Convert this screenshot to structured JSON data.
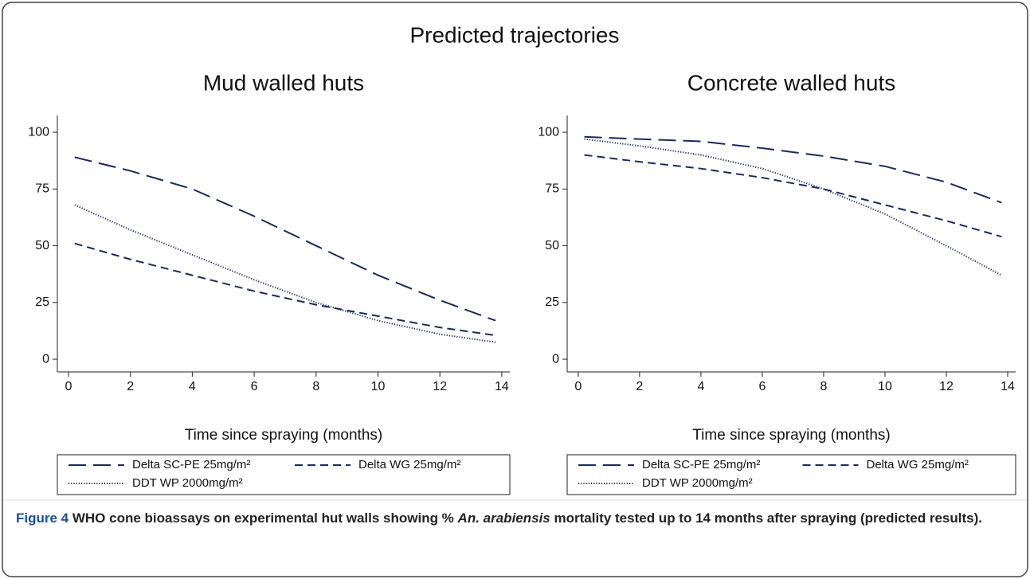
{
  "title": "Predicted trajectories",
  "chart_data": [
    {
      "type": "line",
      "title": "Mud walled huts",
      "x_label": "Time since spraying (months)",
      "x": [
        0.2,
        2,
        4,
        6,
        8,
        10,
        12,
        13.8
      ],
      "xlim": [
        -0.36,
        14.26
      ],
      "xticks": [
        0,
        2,
        4,
        6,
        8,
        10,
        12,
        14
      ],
      "ylim": [
        -5.6,
        107.4
      ],
      "yticks": [
        0,
        25,
        50,
        75,
        100
      ],
      "grid": false,
      "series": [
        {
          "name": "Delta SC-PE 25mg/m²",
          "color": "#1a2a5e",
          "dash": "long",
          "values": [
            89,
            83,
            75,
            63,
            50,
            37,
            26,
            17
          ]
        },
        {
          "name": "Delta WG 25mg/m²",
          "color": "#1a2a5e",
          "dash": "short",
          "values": [
            51,
            44,
            37,
            30,
            24,
            19,
            14,
            10.5
          ]
        },
        {
          "name": "DDT WP 2000mg/m²",
          "color": "#1a2a5e",
          "dash": "dot",
          "values": [
            68,
            57,
            46,
            35,
            25,
            17,
            11,
            7.5
          ]
        }
      ]
    },
    {
      "type": "line",
      "title": "Concrete walled huts",
      "x_label": "Time since spraying (months)",
      "x": [
        0.2,
        2,
        4,
        6,
        8,
        10,
        12,
        13.8
      ],
      "xlim": [
        -0.36,
        14.26
      ],
      "xticks": [
        0,
        2,
        4,
        6,
        8,
        10,
        12,
        14
      ],
      "ylim": [
        -5.6,
        107.4
      ],
      "yticks": [
        0,
        25,
        50,
        75,
        100
      ],
      "grid": false,
      "series": [
        {
          "name": "Delta SC-PE 25mg/m²",
          "color": "#1a2a5e",
          "dash": "long",
          "values": [
            98,
            97,
            96,
            93,
            89.5,
            85,
            78,
            69
          ]
        },
        {
          "name": "Delta WG 25mg/m²",
          "color": "#1a2a5e",
          "dash": "short",
          "values": [
            90,
            87,
            84,
            80,
            75,
            68,
            61,
            54
          ]
        },
        {
          "name": "DDT WP 2000mg/m²",
          "color": "#1a2a5e",
          "dash": "dot",
          "values": [
            97,
            94,
            90,
            84,
            75,
            64,
            50,
            37
          ]
        }
      ]
    }
  ],
  "caption": {
    "label": "Figure 4",
    "text": "WHO cone bioassays on experimental hut walls showing %",
    "italic": "An. arabiensis",
    "rest": "mortality tested up to 14 months after spraying (predicted results)."
  }
}
